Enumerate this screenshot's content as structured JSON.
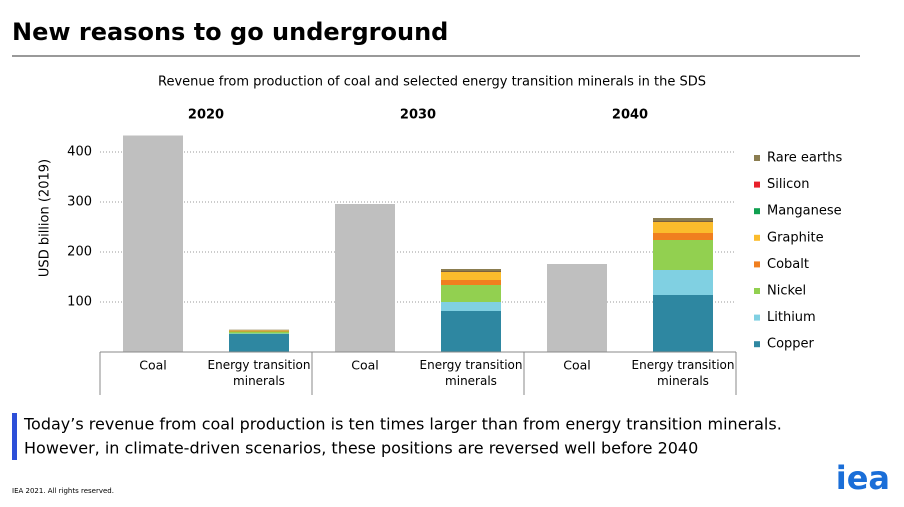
{
  "title": "New reasons to go underground",
  "summary": [
    "Today’s revenue from coal production is ten times larger than from energy transition minerals.",
    "However, in climate-driven scenarios, these positions are reversed well before 2040"
  ],
  "footer": "IEA 2021. All rights reserved.",
  "logo": "iea",
  "chart_data": {
    "type": "bar",
    "stacked": true,
    "title": "Revenue from production of coal and selected energy transition minerals in the SDS",
    "ylabel": "USD billion (2019)",
    "groups": [
      "2020",
      "2030",
      "2040"
    ],
    "categories": [
      "Coal",
      "Energy transition minerals",
      "Coal",
      "Energy transition minerals",
      "Coal",
      "Energy transition minerals"
    ],
    "coal": {
      "color": "#bfbfbf",
      "values": [
        433,
        null,
        296,
        null,
        176,
        null
      ]
    },
    "series": [
      {
        "name": "Copper",
        "color": "#2e87a1",
        "values": [
          null,
          36,
          null,
          82,
          null,
          114
        ]
      },
      {
        "name": "Lithium",
        "color": "#80d0e2",
        "values": [
          null,
          1,
          null,
          18,
          null,
          50
        ]
      },
      {
        "name": "Nickel",
        "color": "#92d050",
        "values": [
          null,
          4,
          null,
          34,
          null,
          60
        ]
      },
      {
        "name": "Cobalt",
        "color": "#f07f1f",
        "values": [
          null,
          1,
          null,
          10,
          null,
          14
        ]
      },
      {
        "name": "Graphite",
        "color": "#fbbc2c",
        "values": [
          null,
          1,
          null,
          16,
          null,
          22
        ]
      },
      {
        "name": "Manganese",
        "color": "#10a050",
        "values": [
          null,
          0.3,
          null,
          1,
          null,
          1
        ]
      },
      {
        "name": "Silicon",
        "color": "#e8202a",
        "values": [
          null,
          0.3,
          null,
          1,
          null,
          1
        ]
      },
      {
        "name": "Rare earths",
        "color": "#8b7d50",
        "values": [
          null,
          1,
          null,
          4,
          null,
          6
        ]
      }
    ],
    "ylim": [
      0,
      450
    ],
    "yticks": [
      100,
      200,
      300,
      400
    ],
    "grid": true
  }
}
